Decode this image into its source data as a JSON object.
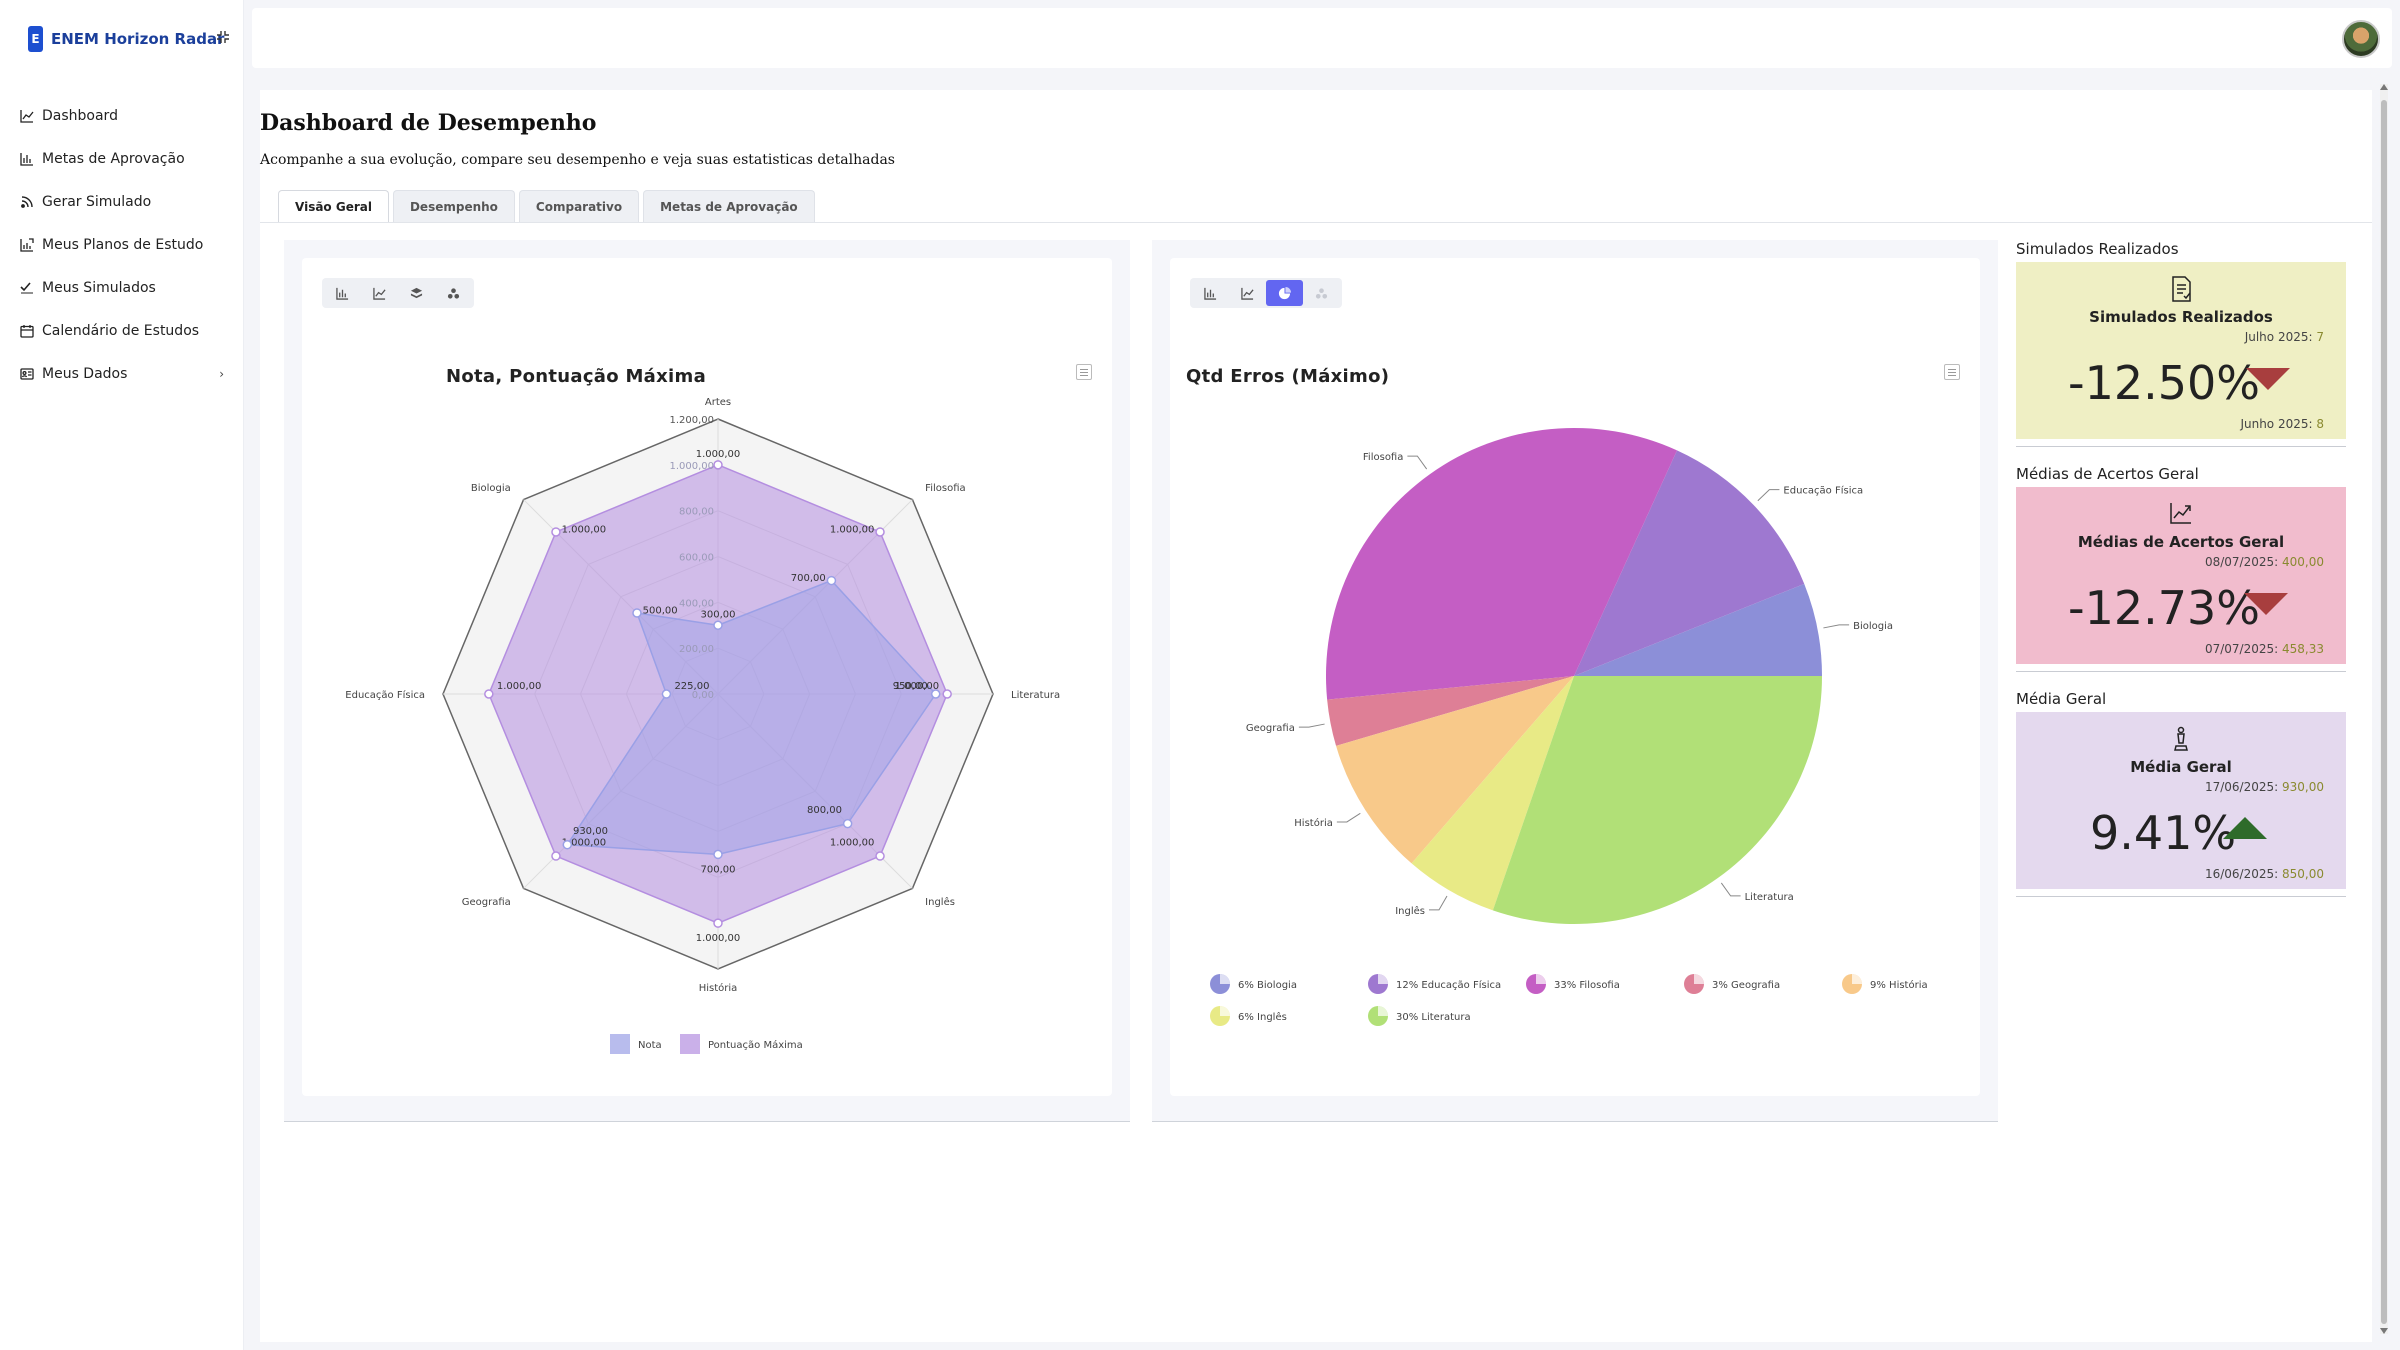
{
  "app": {
    "logo_letter": "E",
    "name": "ENEM Horizon Radar"
  },
  "sidebar": {
    "items": [
      {
        "label": "Dashboard",
        "icon": "line-chart-icon"
      },
      {
        "label": "Metas de Aprovação",
        "icon": "bar-chart-icon"
      },
      {
        "label": "Gerar Simulado",
        "icon": "rss-icon"
      },
      {
        "label": "Meus Planos de Estudo",
        "icon": "plan-chart-icon"
      },
      {
        "label": "Meus Simulados",
        "icon": "check-list-icon"
      },
      {
        "label": "Calendário de Estudos",
        "icon": "calendar-icon"
      },
      {
        "label": "Meus Dados",
        "icon": "id-card-icon",
        "chevron": "›"
      }
    ]
  },
  "page": {
    "title": "Dashboard de Desempenho",
    "subtitle": "Acompanhe a sua evolução, compare seu desempenho e veja suas estatisticas detalhadas"
  },
  "tabs": [
    "Visão Geral",
    "Desempenho",
    "Comparativo",
    "Metas de Aprovação"
  ],
  "colors": {
    "accent": "#6266f1",
    "brand": "#1d4fd0",
    "down": "#a83e3e",
    "up": "#2e6b2a"
  },
  "chart_data": [
    {
      "type": "radar",
      "title": "Nota, Pontuação Máxima",
      "categories": [
        "Artes",
        "Filosofia",
        "Literatura",
        "Inglês",
        "História",
        "Geografia",
        "Educação Física",
        "Biologia"
      ],
      "series": [
        {
          "name": "Nota",
          "values": [
            300,
            700,
            950,
            800,
            700,
            930,
            225,
            500
          ],
          "labels": [
            "300,00",
            "700,00",
            "950,00",
            "800,00",
            "700,00",
            "930,00",
            "225,00",
            "500,00"
          ],
          "color": "#9aa0e6"
        },
        {
          "name": "Pontuação Máxima",
          "values": [
            1000,
            1000,
            1000,
            1000,
            1000,
            1000,
            1000,
            1000
          ],
          "labels": [
            "1.000,00",
            "1.000,00",
            "1.000,00",
            "1.000,00",
            "1.000,00",
            "1.000,00",
            "1.000,00",
            "1.000,00"
          ],
          "color": "#b48ee0"
        }
      ],
      "rmax": 1200,
      "ticks": [
        "0,00",
        "200,00",
        "400,00",
        "600,00",
        "800,00",
        "1.000,00",
        "1.200,00"
      ],
      "legend": "bottom"
    },
    {
      "type": "pie",
      "title": "Qtd Erros (Máximo)",
      "slices": [
        {
          "label": "Biologia",
          "value": 6,
          "legend": "6% Biologia",
          "color": "#8c8fd8"
        },
        {
          "label": "Educação Física",
          "value": 12,
          "legend": "12% Educação Física",
          "color": "#9e78d0"
        },
        {
          "label": "Filosofia",
          "value": 33,
          "legend": "33% Filosofia",
          "color": "#c45ec4"
        },
        {
          "label": "Geografia",
          "value": 3,
          "legend": "3% Geografia",
          "color": "#de7f96"
        },
        {
          "label": "História",
          "value": 9,
          "legend": "9% História",
          "color": "#f8c98a"
        },
        {
          "label": "Inglês",
          "value": 6,
          "legend": "6% Inglês",
          "color": "#e8ea86"
        },
        {
          "label": "Literatura",
          "value": 30,
          "legend": "30% Literatura",
          "color": "#b1e077"
        }
      ],
      "legend": "bottom"
    }
  ],
  "stats": [
    {
      "heading": "Simulados Realizados",
      "title": "Simulados Realizados",
      "icon": "document-icon",
      "current_label": "Julho 2025:",
      "current_value": "7",
      "change": "-12.50%",
      "previous_label": "Junho 2025:",
      "previous_value": "8",
      "trend": "down",
      "bg": "#efefc4"
    },
    {
      "heading": "Médias de Acertos Geral",
      "title": "Médias de Acertos Geral",
      "icon": "trend-chart-icon",
      "current_label": "08/07/2025:",
      "current_value": "400,00",
      "change": "-12.73%",
      "previous_label": "07/07/2025:",
      "previous_value": "458,33",
      "trend": "down",
      "bg": "#f1bccd"
    },
    {
      "heading": "Média Geral",
      "title": "Média Geral",
      "icon": "chess-piece-icon",
      "current_label": "17/06/2025:",
      "current_value": "930,00",
      "change": "9.41%",
      "previous_label": "16/06/2025:",
      "previous_value": "850,00",
      "trend": "up",
      "bg": "#e4d9ee"
    }
  ]
}
